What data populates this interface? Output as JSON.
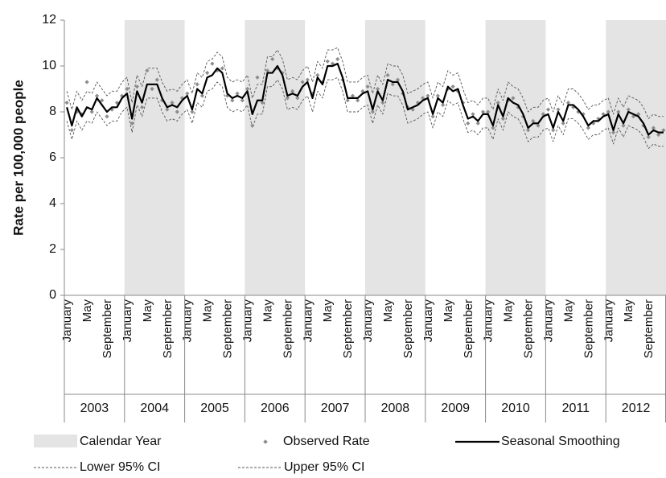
{
  "chart_data": {
    "type": "line",
    "y_label": "Rate per 100,000 people",
    "ylim": [
      0,
      12
    ],
    "yticks": [
      0,
      2,
      4,
      6,
      8,
      10,
      12
    ],
    "categories": [
      "January",
      null,
      null,
      null,
      "May",
      null,
      null,
      null,
      "September",
      null,
      null,
      null,
      "January",
      null,
      null,
      null,
      "May",
      null,
      null,
      null,
      "September",
      null,
      null,
      null,
      "January",
      null,
      null,
      null,
      "May",
      null,
      null,
      null,
      "September",
      null,
      null,
      null,
      "January",
      null,
      null,
      null,
      "May",
      null,
      null,
      null,
      "September",
      null,
      null,
      null,
      "January",
      null,
      null,
      null,
      "May",
      null,
      null,
      null,
      "September",
      null,
      null,
      null,
      "January",
      null,
      null,
      null,
      "May",
      null,
      null,
      null,
      "September",
      null,
      null,
      null,
      "January",
      null,
      null,
      null,
      "May",
      null,
      null,
      null,
      "September",
      null,
      null,
      null,
      "January",
      null,
      null,
      null,
      "May",
      null,
      null,
      null,
      "September",
      null,
      null,
      null,
      "January",
      null,
      null,
      null,
      "May",
      null,
      null,
      null,
      "September",
      null,
      null,
      null,
      "January",
      null,
      null,
      null,
      "May",
      null,
      null,
      null,
      "September",
      null,
      null,
      null
    ],
    "groups": [
      {
        "label": "2003",
        "shaded": false
      },
      {
        "label": "2004",
        "shaded": true
      },
      {
        "label": "2005",
        "shaded": false
      },
      {
        "label": "2006",
        "shaded": true
      },
      {
        "label": "2007",
        "shaded": false
      },
      {
        "label": "2008",
        "shaded": true
      },
      {
        "label": "2009",
        "shaded": false
      },
      {
        "label": "2010",
        "shaded": true
      },
      {
        "label": "2011",
        "shaded": false
      },
      {
        "label": "2012",
        "shaded": true
      }
    ],
    "band": {
      "name": "Calendar Year",
      "color": "#e4e4e4"
    },
    "series": [
      {
        "name": "Observed Rate",
        "color": "#8c8c8c",
        "style": "points",
        "values": [
          8.4,
          7.2,
          8.0,
          7.9,
          9.3,
          8.0,
          8.7,
          8.5,
          7.8,
          8.1,
          8.4,
          8.7,
          9.0,
          7.5,
          9.1,
          8.2,
          9.8,
          9.0,
          9.4,
          8.5,
          8.1,
          8.4,
          8.0,
          8.6,
          8.8,
          8.0,
          9.2,
          8.7,
          9.7,
          10.1,
          9.8,
          9.9,
          8.7,
          8.5,
          8.8,
          8.5,
          9.0,
          7.4,
          9.5,
          8.4,
          9.8,
          10.3,
          9.9,
          9.7,
          8.6,
          8.9,
          8.6,
          9.3,
          9.4,
          8.8,
          9.6,
          9.3,
          10.2,
          10.1,
          10.3,
          9.4,
          8.5,
          8.7,
          8.5,
          8.9,
          9.1,
          8.0,
          9.0,
          8.4,
          9.6,
          9.2,
          9.4,
          8.8,
          8.2,
          8.1,
          8.4,
          8.6,
          8.7,
          7.8,
          8.7,
          8.3,
          9.0,
          9.1,
          8.9,
          8.4,
          7.5,
          7.9,
          7.5,
          8.0,
          8.0,
          7.3,
          8.4,
          7.7,
          8.5,
          8.6,
          8.2,
          7.8,
          7.2,
          7.6,
          7.4,
          7.9,
          8.1,
          7.2,
          8.1,
          7.5,
          8.4,
          8.2,
          8.0,
          7.9,
          7.3,
          7.5,
          7.7,
          7.9,
          8.0,
          7.1,
          8.0,
          7.4,
          8.1,
          7.8,
          7.9,
          7.4,
          6.9,
          7.3,
          7.0,
          7.2
        ]
      },
      {
        "name": "Seasonal Smoothing",
        "color": "#000000",
        "style": "line",
        "values": [
          8.2,
          7.4,
          8.2,
          7.8,
          8.2,
          8.1,
          8.6,
          8.3,
          8.0,
          8.2,
          8.2,
          8.6,
          8.8,
          7.7,
          8.9,
          8.4,
          9.2,
          9.2,
          9.2,
          8.6,
          8.2,
          8.3,
          8.2,
          8.5,
          8.7,
          8.1,
          9.0,
          8.8,
          9.5,
          9.6,
          9.9,
          9.7,
          8.8,
          8.6,
          8.7,
          8.6,
          8.9,
          7.9,
          8.5,
          8.5,
          9.7,
          9.7,
          10.0,
          9.6,
          8.7,
          8.8,
          8.7,
          9.1,
          9.3,
          8.6,
          9.5,
          9.2,
          10.0,
          10.0,
          10.1,
          9.5,
          8.6,
          8.6,
          8.6,
          8.8,
          8.9,
          8.1,
          8.9,
          8.5,
          9.4,
          9.3,
          9.3,
          8.9,
          8.1,
          8.2,
          8.3,
          8.5,
          8.6,
          7.9,
          8.6,
          8.4,
          9.1,
          8.9,
          9.0,
          8.3,
          7.7,
          7.8,
          7.6,
          7.9,
          7.9,
          7.4,
          8.3,
          7.8,
          8.6,
          8.4,
          8.3,
          7.9,
          7.3,
          7.5,
          7.5,
          7.8,
          7.9,
          7.3,
          8.0,
          7.6,
          8.3,
          8.3,
          8.1,
          7.8,
          7.4,
          7.6,
          7.6,
          7.8,
          7.9,
          7.2,
          7.9,
          7.5,
          8.0,
          7.9,
          7.8,
          7.5,
          7.0,
          7.2,
          7.1,
          7.1
        ]
      },
      {
        "name": "Lower 95% CI",
        "color": "#555555",
        "style": "dashed",
        "values": [
          7.6,
          6.8,
          7.6,
          7.2,
          7.6,
          7.5,
          8.0,
          7.7,
          7.4,
          7.6,
          7.6,
          8.0,
          8.2,
          7.1,
          8.3,
          7.8,
          8.6,
          8.6,
          8.6,
          8.0,
          7.6,
          7.7,
          7.6,
          7.9,
          8.1,
          7.5,
          8.4,
          8.2,
          8.9,
          9.0,
          9.3,
          9.1,
          8.2,
          8.0,
          8.1,
          8.0,
          8.3,
          7.3,
          7.9,
          7.9,
          9.1,
          9.1,
          9.4,
          9.0,
          8.1,
          8.2,
          8.1,
          8.5,
          8.7,
          8.0,
          8.9,
          8.6,
          9.4,
          9.4,
          9.5,
          8.9,
          8.0,
          8.0,
          8.0,
          8.2,
          8.3,
          7.5,
          8.3,
          7.9,
          8.8,
          8.7,
          8.7,
          8.3,
          7.5,
          7.6,
          7.7,
          7.9,
          8.0,
          7.3,
          8.0,
          7.8,
          8.5,
          8.3,
          8.4,
          7.7,
          7.1,
          7.2,
          7.0,
          7.3,
          7.3,
          6.8,
          7.7,
          7.2,
          8.0,
          7.8,
          7.7,
          7.3,
          6.7,
          6.9,
          6.9,
          7.2,
          7.3,
          6.7,
          7.4,
          7.0,
          7.7,
          7.7,
          7.5,
          7.2,
          6.8,
          7.0,
          7.0,
          7.2,
          7.3,
          6.6,
          7.3,
          6.9,
          7.4,
          7.3,
          7.2,
          6.9,
          6.4,
          6.6,
          6.5,
          6.5
        ]
      },
      {
        "name": "Upper 95% CI",
        "color": "#555555",
        "style": "dashed",
        "values": [
          8.9,
          8.1,
          8.9,
          8.5,
          8.9,
          8.8,
          9.3,
          9.0,
          8.7,
          8.9,
          8.9,
          9.3,
          9.5,
          8.4,
          9.6,
          9.1,
          9.9,
          9.9,
          9.9,
          9.3,
          8.9,
          9.0,
          8.9,
          9.2,
          9.4,
          8.8,
          9.7,
          9.5,
          10.2,
          10.3,
          10.6,
          10.4,
          9.5,
          9.3,
          9.4,
          9.3,
          9.6,
          8.6,
          9.2,
          9.2,
          10.4,
          10.4,
          10.7,
          10.3,
          9.4,
          9.5,
          9.4,
          9.8,
          10.0,
          9.3,
          10.2,
          9.9,
          10.7,
          10.7,
          10.8,
          10.2,
          9.3,
          9.3,
          9.3,
          9.5,
          9.6,
          8.8,
          9.6,
          9.2,
          10.1,
          10.0,
          10.0,
          9.6,
          8.8,
          8.9,
          9.0,
          9.2,
          9.3,
          8.6,
          9.3,
          9.1,
          9.8,
          9.6,
          9.7,
          9.0,
          8.4,
          8.5,
          8.3,
          8.6,
          8.6,
          8.1,
          9.0,
          8.5,
          9.3,
          9.1,
          9.0,
          8.6,
          8.0,
          8.2,
          8.2,
          8.5,
          8.6,
          8.0,
          8.7,
          8.3,
          9.0,
          9.0,
          8.8,
          8.5,
          8.1,
          8.3,
          8.3,
          8.5,
          8.6,
          7.9,
          8.6,
          8.2,
          8.7,
          8.6,
          8.5,
          8.2,
          7.7,
          7.9,
          7.8,
          7.8
        ]
      }
    ]
  }
}
